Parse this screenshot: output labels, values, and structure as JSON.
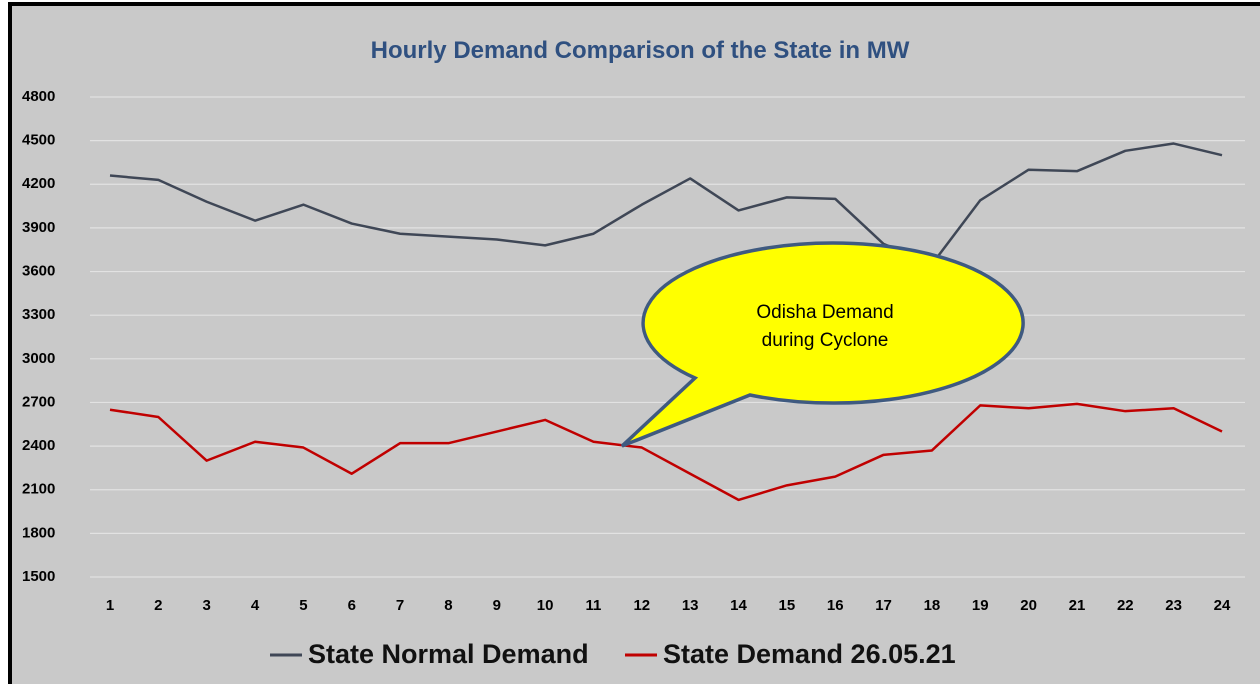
{
  "chart_data": {
    "type": "line",
    "title": "Hourly Demand Comparison of the State in MW",
    "categories": [
      1,
      2,
      3,
      4,
      5,
      6,
      7,
      8,
      9,
      10,
      11,
      12,
      13,
      14,
      15,
      16,
      17,
      18,
      19,
      20,
      21,
      22,
      23,
      24
    ],
    "series": [
      {
        "name": "State Normal Demand",
        "color": "#3f4756",
        "values": [
          4260,
          4230,
          4080,
          3950,
          4060,
          3930,
          3860,
          3840,
          3820,
          3780,
          3860,
          4060,
          4240,
          4020,
          4110,
          4100,
          3790,
          3650,
          4090,
          4300,
          4290,
          4430,
          4480,
          4400
        ]
      },
      {
        "name": "State Demand 26.05.21",
        "color": "#c00000",
        "values": [
          2650,
          2600,
          2300,
          2430,
          2390,
          2210,
          2420,
          2420,
          2500,
          2580,
          2430,
          2390,
          2210,
          2030,
          2130,
          2190,
          2340,
          2370,
          2680,
          2660,
          2690,
          2640,
          2660,
          2500
        ]
      }
    ],
    "ylim": [
      1500,
      4800
    ],
    "yticks": [
      1500,
      1800,
      2100,
      2400,
      2700,
      3000,
      3300,
      3600,
      3900,
      4200,
      4500,
      4800
    ],
    "grid": true,
    "legend": "bottom",
    "annotation": [
      "Odisha Demand",
      "during Cyclone"
    ]
  }
}
